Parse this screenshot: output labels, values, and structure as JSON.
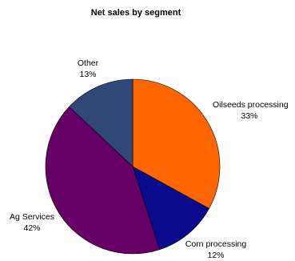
{
  "chart_data": {
    "type": "pie",
    "title": "Net sales by segment",
    "start_angle_deg": 0,
    "direction": "clockwise",
    "slices": [
      {
        "label": "Oilseeds processing",
        "value": 33,
        "value_label": "33%",
        "color": "#FF6600",
        "label_anchor": "start"
      },
      {
        "label": "Corn processing",
        "value": 12,
        "value_label": "12%",
        "color": "#0A0A8C",
        "label_anchor": "middle"
      },
      {
        "label": "Ag Services",
        "value": 42,
        "value_label": "42%",
        "color": "#660066",
        "label_anchor": "middle"
      },
      {
        "label": "Other",
        "value": 13,
        "value_label": "13%",
        "color": "#2F4878",
        "label_anchor": "middle"
      }
    ]
  }
}
